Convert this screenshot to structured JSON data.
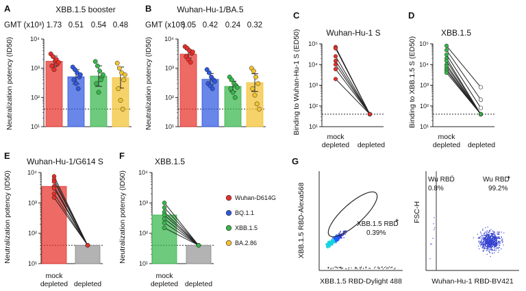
{
  "colors": {
    "Wuhan-D614G": "#e8302a",
    "BQ.1.1": "#2f57e0",
    "XBB.1.5": "#36b54a",
    "BA.2.86": "#f2c230",
    "mock": "#ee6b66",
    "depleted": "#b3b3b3"
  },
  "panel_labels": {
    "A": "A",
    "B": "B",
    "C": "C",
    "D": "D",
    "E": "E",
    "F": "F",
    "G": "G"
  },
  "legend": [
    "Wuhan-D614G",
    "BQ.1.1",
    "XBB.1.5",
    "BA.2.86"
  ],
  "gmt_label": "GMT (x10³)",
  "chart_data": [
    {
      "id": "A",
      "type": "bar",
      "title": "XBB.1.5 booster",
      "ylabel": "Neutralization potency (ID50)",
      "yscale": "log",
      "ylim": [
        10,
        10000
      ],
      "yticks": [
        "10¹",
        "10²",
        "10³",
        "10⁴"
      ],
      "threshold": 40,
      "categories": [
        "Wuhan-D614G",
        "BQ.1.1",
        "XBB.1.5",
        "BA.2.86"
      ],
      "gmt": [
        "1.73",
        "0.51",
        "0.54",
        "0.48"
      ],
      "values": [
        1730,
        510,
        540,
        480
      ],
      "errors_low": [
        1150,
        290,
        240,
        210
      ],
      "errors_high": [
        2600,
        890,
        1210,
        1100
      ],
      "points": [
        [
          3100,
          2500,
          1800,
          1400,
          1200,
          900,
          2000,
          1600
        ],
        [
          1100,
          900,
          700,
          500,
          400,
          300,
          200,
          600
        ],
        [
          1700,
          1200,
          800,
          500,
          300,
          150,
          400,
          600
        ],
        [
          1500,
          1000,
          700,
          400,
          200,
          80,
          40,
          600
        ]
      ]
    },
    {
      "id": "B",
      "type": "bar",
      "title": "Wuhan-Hu-1/BA.5",
      "ylabel": "Neutralization potency (ID50)",
      "yscale": "log",
      "ylim": [
        10,
        10000
      ],
      "yticks": [
        "10¹",
        "10²",
        "10³",
        "10⁴"
      ],
      "threshold": 40,
      "categories": [
        "Wuhan-D614G",
        "BQ.1.1",
        "XBB.1.5",
        "BA.2.86"
      ],
      "gmt": [
        "3.05",
        "0.42",
        "0.24",
        "0.32"
      ],
      "values": [
        3050,
        420,
        240,
        320
      ],
      "errors_low": [
        2200,
        270,
        160,
        160
      ],
      "errors_high": [
        4300,
        660,
        360,
        650
      ],
      "points": [
        [
          5500,
          4800,
          4000,
          3200,
          2500,
          2000,
          1600,
          3600
        ],
        [
          900,
          700,
          500,
          400,
          300,
          250,
          200,
          350
        ],
        [
          500,
          400,
          300,
          250,
          200,
          150,
          100,
          220
        ],
        [
          1000,
          800,
          500,
          300,
          200,
          120,
          60,
          40
        ]
      ]
    },
    {
      "id": "C",
      "type": "paired",
      "title": "Wuhan-Hu-1 S",
      "ylabel": "Binding to Wuhan-Hu-1 S (ED50)",
      "yscale": "log",
      "ylim": [
        10,
        100000
      ],
      "yticks": [
        "10¹",
        "10²",
        "10³",
        "10⁴",
        "10⁵"
      ],
      "threshold": 40,
      "categories": [
        "mock depleted",
        "depleted"
      ],
      "pairs": [
        [
          70000,
          40
        ],
        [
          60000,
          40
        ],
        [
          25000,
          40
        ],
        [
          15000,
          40
        ],
        [
          10000,
          40
        ],
        [
          6000,
          40
        ],
        [
          2000,
          40
        ]
      ]
    },
    {
      "id": "D",
      "type": "paired",
      "title": "XBB.1.5",
      "ylabel": "Binding to XBB.1.5 S (ED50)",
      "yscale": "log",
      "ylim": [
        10,
        100000
      ],
      "yticks": [
        "10¹",
        "10²",
        "10³",
        "10⁴",
        "10⁵"
      ],
      "threshold": 40,
      "categories": [
        "mock depleted",
        "depleted"
      ],
      "pairs": [
        [
          80000,
          800
        ],
        [
          50000,
          200
        ],
        [
          30000,
          80
        ],
        [
          20000,
          40
        ],
        [
          15000,
          40
        ],
        [
          10000,
          40
        ],
        [
          8000,
          40
        ],
        [
          6000,
          40
        ],
        [
          5000,
          40
        ],
        [
          4000,
          40
        ]
      ]
    },
    {
      "id": "E",
      "type": "bar_paired",
      "title": "Wuhan-Hu-1/G614 S",
      "ylabel": "Neutralization potency (ID50)",
      "yscale": "log",
      "ylim": [
        10,
        10000
      ],
      "yticks": [
        "10¹",
        "10²",
        "10³",
        "10⁴"
      ],
      "threshold": 40,
      "categories": [
        "mock depleted",
        "depleted"
      ],
      "values": [
        3500,
        40
      ],
      "pairs": [
        [
          7500,
          40
        ],
        [
          6000,
          40
        ],
        [
          5000,
          40
        ],
        [
          3500,
          40
        ],
        [
          3000,
          40
        ],
        [
          2000,
          40
        ],
        [
          1500,
          40
        ]
      ]
    },
    {
      "id": "F",
      "type": "bar_paired",
      "title": "XBB.1.5",
      "ylabel": "Neutralization potency (ID50)",
      "yscale": "log",
      "ylim": [
        10,
        10000
      ],
      "yticks": [
        "10¹",
        "10²",
        "10³",
        "10⁴"
      ],
      "threshold": 40,
      "categories": [
        "mock depleted",
        "depleted"
      ],
      "values": [
        400,
        40
      ],
      "pairs": [
        [
          1000,
          40
        ],
        [
          700,
          40
        ],
        [
          500,
          40
        ],
        [
          400,
          40
        ],
        [
          300,
          40
        ],
        [
          220,
          40
        ],
        [
          150,
          40
        ]
      ]
    },
    {
      "id": "G1",
      "type": "scatter",
      "ylabel": "XBB.1.5 RBD-Alexa568",
      "xlabel": "XBB.1.5 RBD-Dylight 488",
      "gate_label": "XBB.1.5 RBD",
      "gate_pct": "0.39%"
    },
    {
      "id": "G2",
      "type": "scatter",
      "ylabel": "FSC-H",
      "xlabel": "Wuhan-Hu-1 RBD-BV421",
      "gate_neg_label": "Wu RBD",
      "gate_neg_pct": "0.8%",
      "gate_pos_label": "Wu RBD",
      "gate_pos_pct": "99.2%"
    }
  ]
}
